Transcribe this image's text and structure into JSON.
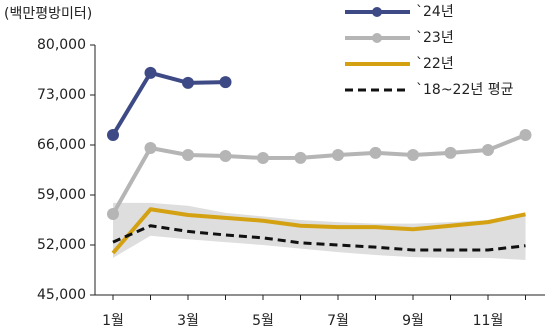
{
  "chart_data": {
    "type": "line",
    "y_label": "(백만평방미터)",
    "categories": [
      "1월",
      null,
      "3월",
      null,
      "5월",
      null,
      "7월",
      null,
      "9월",
      null,
      "11월",
      null
    ],
    "ylim": [
      45000,
      80000
    ],
    "yticks": [
      {
        "value": 45000,
        "label": "45,000"
      },
      {
        "value": 52000,
        "label": "52,000"
      },
      {
        "value": 59000,
        "label": "59,000"
      },
      {
        "value": 66000,
        "label": "66,000"
      },
      {
        "value": 73000,
        "label": "73,000"
      },
      {
        "value": 80000,
        "label": "80,000"
      }
    ],
    "band": {
      "color": "#dedede",
      "upper": [
        57900,
        57900,
        57500,
        56500,
        56000,
        55500,
        55200,
        55000,
        55000,
        55200,
        55500,
        56200
      ],
      "lower": [
        50200,
        53300,
        52800,
        52400,
        52000,
        51500,
        51000,
        50600,
        50300,
        50200,
        50200,
        49900
      ]
    },
    "series": [
      {
        "name": "`24년",
        "color": "#3d4a85",
        "markers": true,
        "dash": false,
        "values": [
          67400,
          76100,
          74700,
          74800,
          null,
          null,
          null,
          null,
          null,
          null,
          null,
          null
        ]
      },
      {
        "name": "`23년",
        "color": "#b5b5b5",
        "markers": true,
        "dash": false,
        "values": [
          56340,
          65580,
          64600,
          64460,
          64180,
          64200,
          64600,
          64900,
          64600,
          64900,
          65300,
          67400
        ]
      },
      {
        "name": "`22년",
        "color": "#d4a112",
        "markers": false,
        "dash": false,
        "values": [
          50880,
          57000,
          56200,
          55800,
          55400,
          54700,
          54500,
          54500,
          54200,
          54700,
          55200,
          56300
        ]
      },
      {
        "name": "`18~22년 평균",
        "color": "#111111",
        "markers": false,
        "dash": true,
        "values": [
          52400,
          54700,
          53900,
          53400,
          53000,
          52300,
          52000,
          51700,
          51300,
          51300,
          51300,
          51900
        ]
      }
    ]
  }
}
